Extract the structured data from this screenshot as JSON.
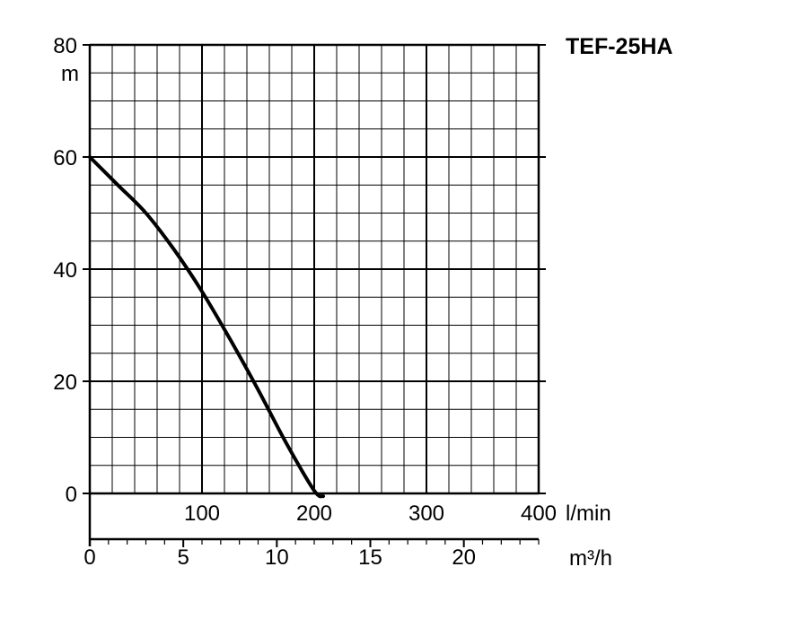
{
  "chart_data": {
    "type": "line",
    "title": "TEF-25HA",
    "ylabel": "m",
    "xlabel": "l/min",
    "xlabel_secondary": "m³/h",
    "ylim": [
      0,
      80
    ],
    "xlim": [
      0,
      400
    ],
    "secondary_xlim": [
      0,
      24
    ],
    "y_ticks": [
      "0",
      "20",
      "40",
      "60",
      "80"
    ],
    "x_ticks": [
      "100",
      "200",
      "300",
      "400"
    ],
    "secondary_x_ticks": [
      "0",
      "5",
      "10",
      "15",
      "20"
    ],
    "grid": true,
    "legend": "none",
    "series": [
      {
        "color": "#000000",
        "x": [
          0,
          25,
          50,
          75,
          100,
          125,
          150,
          175,
          200,
          208
        ],
        "y": [
          60,
          55,
          50,
          43.5,
          36,
          27.5,
          18.5,
          9,
          0.5,
          -0.5
        ]
      }
    ]
  }
}
